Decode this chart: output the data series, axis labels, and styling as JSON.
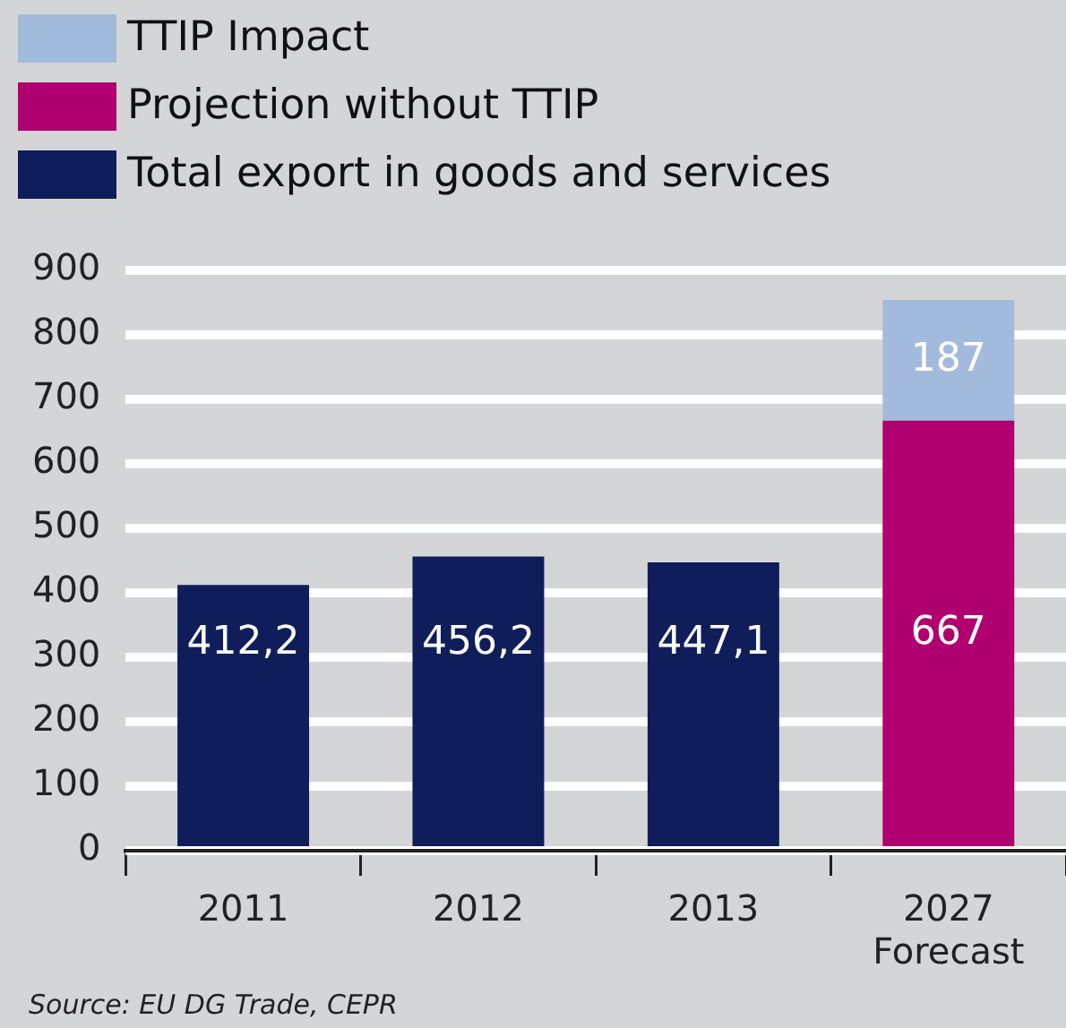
{
  "chart_data": {
    "type": "bar",
    "stacked": true,
    "categories": [
      "2011",
      "2012",
      "2013",
      "2027\nForecast"
    ],
    "series": [
      {
        "name": "Total export in goods and services",
        "color": "#0f1e5a",
        "values": [
          412.2,
          456.2,
          447.1,
          null
        ],
        "value_labels": [
          "412,2",
          "456,2",
          "447,1",
          null
        ]
      },
      {
        "name": "Projection without TTIP",
        "color": "#b0006f",
        "values": [
          null,
          null,
          null,
          667
        ],
        "value_labels": [
          null,
          null,
          null,
          "667"
        ]
      },
      {
        "name": "TTIP Impact",
        "color": "#a2bbdc",
        "values": [
          null,
          null,
          null,
          187
        ],
        "value_labels": [
          null,
          null,
          null,
          "187"
        ]
      }
    ],
    "ylim": [
      0,
      900
    ],
    "yticks": [
      0,
      100,
      200,
      300,
      400,
      500,
      600,
      700,
      800,
      900
    ],
    "grid": "y",
    "legend": "top left",
    "annotations": [
      "Source: EU DG Trade, CEPR"
    ]
  }
}
